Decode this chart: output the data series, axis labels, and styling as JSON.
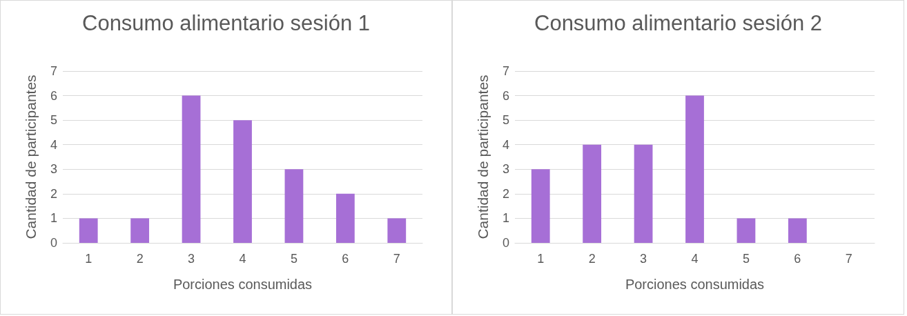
{
  "chart_data": [
    {
      "type": "bar",
      "title": "Consumo alimentario sesión 1",
      "xlabel": "Porciones consumidas",
      "ylabel": "Cantidad de participantes",
      "categories": [
        "1",
        "2",
        "3",
        "4",
        "5",
        "6",
        "7"
      ],
      "values": [
        1,
        1,
        6,
        5,
        3,
        2,
        1
      ],
      "color": "#a66fd6",
      "ylim": [
        0,
        7
      ],
      "yticks": [
        0,
        1,
        2,
        3,
        4,
        5,
        6,
        7
      ],
      "grid": "y"
    },
    {
      "type": "bar",
      "title": "Consumo alimentario sesión 2",
      "xlabel": "Porciones consumidas",
      "ylabel": "Cantidad de participantes",
      "categories": [
        "1",
        "2",
        "3",
        "4",
        "5",
        "6",
        "7"
      ],
      "values": [
        3,
        4,
        4,
        6,
        1,
        1,
        0
      ],
      "color": "#a66fd6",
      "ylim": [
        0,
        7
      ],
      "yticks": [
        0,
        1,
        2,
        3,
        4,
        5,
        6,
        7
      ],
      "grid": "y"
    }
  ]
}
